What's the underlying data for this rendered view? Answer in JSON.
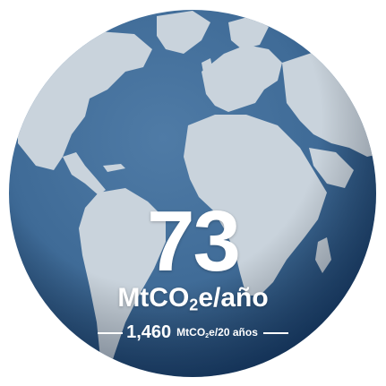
{
  "colors": {
    "ocean": "#3f6b97",
    "ocean_dark": "#1f4672",
    "land": "#c9d3dc",
    "text": "#ffffff"
  },
  "headline": {
    "value": "73",
    "unit_prefix": "MtCO",
    "unit_sub": "2",
    "unit_suffix": "e/año"
  },
  "subline": {
    "value": "1,460",
    "unit_prefix": "MtCO",
    "unit_sub": "2",
    "unit_suffix": "e/20 años"
  }
}
